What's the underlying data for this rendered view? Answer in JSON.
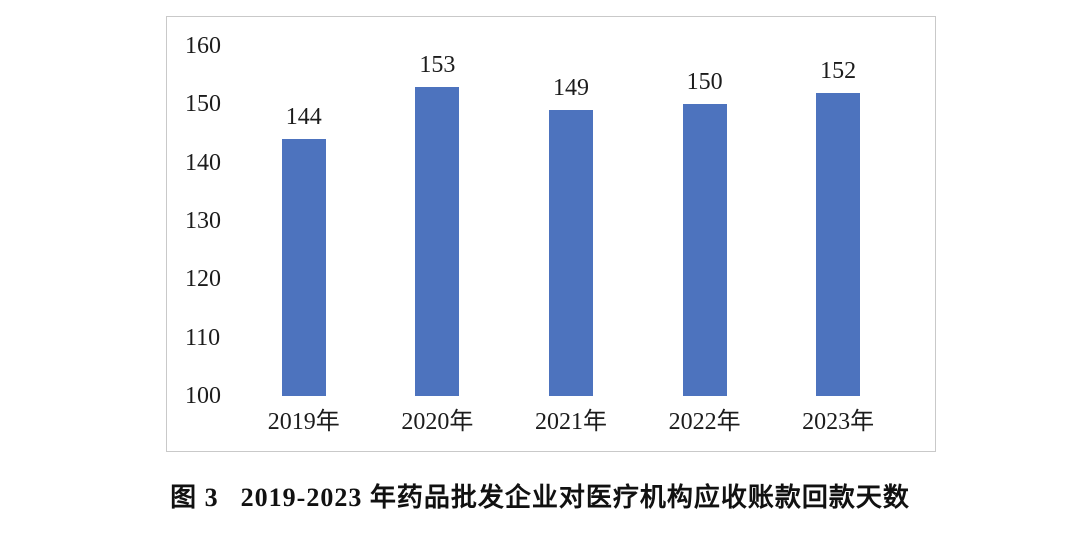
{
  "caption": {
    "figure_label": "图 3",
    "title": "2019-2023 年药品批发企业对医疗机构应收账款回款天数"
  },
  "colors": {
    "bar": "#4d73be",
    "text": "#1c1c1c",
    "chart_border": "#c9c9c9",
    "background": "#ffffff"
  },
  "chart_data": {
    "type": "bar",
    "categories": [
      "2019年",
      "2020年",
      "2021年",
      "2022年",
      "2023年"
    ],
    "values": [
      144,
      153,
      149,
      150,
      152
    ],
    "data_labels": [
      "144",
      "153",
      "149",
      "150",
      "152"
    ],
    "title": "",
    "xlabel": "",
    "ylabel": "",
    "ylim": [
      100,
      160
    ],
    "yticks": [
      160,
      150,
      140,
      130,
      120,
      110,
      100
    ],
    "grid": false,
    "legend": false,
    "data_labels_shown": true
  }
}
